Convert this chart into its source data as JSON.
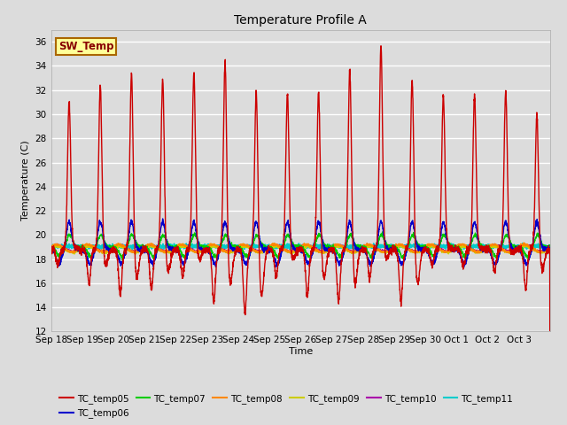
{
  "title": "Temperature Profile A",
  "xlabel": "Time",
  "ylabel": "Temperature (C)",
  "ylim": [
    12,
    37
  ],
  "yticks": [
    12,
    14,
    16,
    18,
    20,
    22,
    24,
    26,
    28,
    30,
    32,
    34,
    36
  ],
  "bg_color": "#dcdcdc",
  "plot_bg_color": "#dcdcdc",
  "grid_color": "white",
  "series_colors": {
    "TC_temp05": "#cc0000",
    "TC_temp06": "#0000cc",
    "TC_temp07": "#00cc00",
    "TC_temp08": "#ff8800",
    "TC_temp09": "#cccc00",
    "TC_temp10": "#aa00aa",
    "TC_temp11": "#00cccc"
  },
  "sw_temp_box_color": "#ffff99",
  "sw_temp_border_color": "#aa6600",
  "sw_temp_text_color": "#880000",
  "x_labels": [
    "Sep 18",
    "Sep 19",
    "Sep 20",
    "Sep 21",
    "Sep 22",
    "Sep 23",
    "Sep 24",
    "Sep 25",
    "Sep 26",
    "Sep 27",
    "Sep 28",
    "Sep 29",
    "Sep 30",
    "Oct 1",
    "Oct 2",
    "Oct 3"
  ]
}
